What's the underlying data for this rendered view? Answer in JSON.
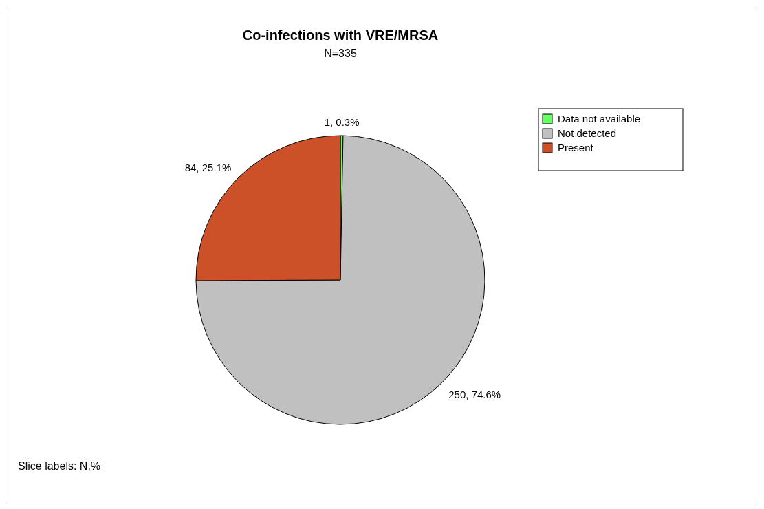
{
  "chart_data": {
    "type": "pie",
    "title": "Co-infections with VRE/MRSA",
    "subtitle": "N=335",
    "categories": [
      "Data not available",
      "Not detected",
      "Present"
    ],
    "values": [
      1,
      250,
      84
    ],
    "colors": [
      "#66ff66",
      "#c0c0c0",
      "#cc5028"
    ],
    "value_labels": [
      "1, 0.3%",
      "250, 74.6%",
      "84, 25.1%"
    ],
    "legend": "top right",
    "annotations": [
      "Slice labels: N,%"
    ]
  }
}
